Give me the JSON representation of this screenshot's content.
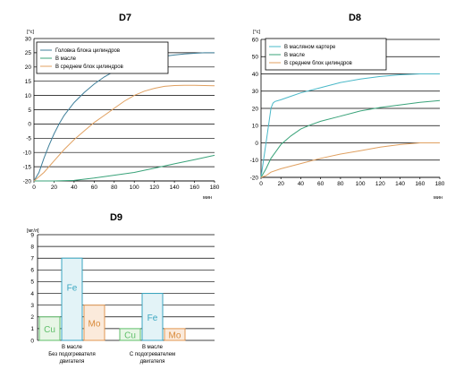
{
  "chart_data": [
    {
      "type": "line",
      "title": "D7",
      "unit": "[°с]",
      "xunit": "мин",
      "xlim": [
        0,
        180
      ],
      "ylim": [
        -20,
        30
      ],
      "xticks": [
        0,
        20,
        40,
        60,
        80,
        100,
        120,
        140,
        160,
        180
      ],
      "yticks": [
        -20,
        -15,
        -10,
        -5,
        0,
        5,
        10,
        15,
        20,
        25,
        30
      ],
      "grid": "horizontal",
      "legend_position": "top-left",
      "series": [
        {
          "name": "Головка блока цилиндров",
          "color": "#3f7f9a",
          "x": [
            0,
            5,
            10,
            15,
            20,
            25,
            30,
            40,
            50,
            60,
            70,
            80,
            90,
            100,
            110,
            120,
            130,
            140,
            150,
            160,
            170,
            180
          ],
          "y": [
            -20,
            -17,
            -12,
            -7.5,
            -3.5,
            0,
            3,
            7.5,
            11,
            14,
            16.5,
            18.5,
            20,
            21.5,
            22.5,
            23.2,
            23.8,
            24.2,
            24.6,
            24.8,
            25,
            25
          ]
        },
        {
          "name": "В масле",
          "color": "#3aa37a",
          "x": [
            0,
            20,
            40,
            60,
            80,
            100,
            120,
            140,
            160,
            180
          ],
          "y": [
            -20,
            -20,
            -19.8,
            -19,
            -18,
            -17,
            -15.5,
            -14,
            -12.5,
            -11
          ]
        },
        {
          "name": "В среднем блок цилиндров",
          "color": "#e0a060",
          "x": [
            0,
            10,
            20,
            30,
            40,
            50,
            60,
            70,
            80,
            90,
            100,
            110,
            120,
            130,
            140,
            150,
            160,
            170,
            180
          ],
          "y": [
            -20,
            -17,
            -13,
            -9,
            -5.5,
            -2.5,
            0.5,
            3,
            5.5,
            8,
            10,
            11.5,
            12.5,
            13.2,
            13.5,
            13.6,
            13.6,
            13.5,
            13.4
          ]
        }
      ]
    },
    {
      "type": "line",
      "title": "D8",
      "unit": "[°с]",
      "xunit": "мин",
      "xlim": [
        0,
        180
      ],
      "ylim": [
        -20,
        60
      ],
      "xticks": [
        0,
        20,
        40,
        60,
        80,
        100,
        120,
        140,
        160,
        180
      ],
      "yticks": [
        -20,
        -10,
        0,
        10,
        20,
        30,
        40,
        50,
        60
      ],
      "grid": "horizontal",
      "legend_position": "top-left",
      "series": [
        {
          "name": "В масляном картере",
          "color": "#4ab8c8",
          "x": [
            0,
            5,
            8,
            10,
            12,
            14,
            20,
            30,
            40,
            60,
            80,
            100,
            120,
            140,
            160,
            180
          ],
          "y": [
            -20,
            0,
            12,
            20,
            23,
            24,
            25,
            27,
            29,
            32,
            35,
            37,
            38.5,
            39.5,
            40,
            40
          ]
        },
        {
          "name": "В масле",
          "color": "#3aa37a",
          "x": [
            0,
            5,
            10,
            15,
            20,
            30,
            40,
            50,
            60,
            80,
            100,
            120,
            140,
            160,
            180
          ],
          "y": [
            -20,
            -15,
            -9,
            -5,
            -1,
            4,
            8,
            10.5,
            12.5,
            15.5,
            18.5,
            20.5,
            22,
            23.5,
            24.5
          ]
        },
        {
          "name": "В среднем блок цилиндров",
          "color": "#e0a060",
          "x": [
            0,
            5,
            10,
            20,
            30,
            40,
            60,
            80,
            100,
            120,
            140,
            160,
            180
          ],
          "y": [
            -20,
            -19,
            -17,
            -15,
            -13.5,
            -12,
            -9,
            -6.5,
            -4.5,
            -2.5,
            -1,
            0,
            0
          ]
        }
      ]
    },
    {
      "type": "bar",
      "title": "D9",
      "unit": "[мг/л]",
      "ylim": [
        0,
        9
      ],
      "yticks": [
        0,
        1,
        2,
        3,
        4,
        5,
        6,
        7,
        8,
        9
      ],
      "grid": "horizontal",
      "groups": [
        {
          "label_lines": [
            "В масле",
            "Без подогревателя",
            "двигателя"
          ],
          "bars": [
            {
              "name": "Cu",
              "value": 2,
              "fill": "#e8f6e6",
              "stroke": "#5fbf6a",
              "text_color": "#5fbf6a"
            },
            {
              "name": "Fe",
              "value": 7,
              "fill": "#e3f3f7",
              "stroke": "#39a6c0",
              "text_color": "#39a6c0"
            },
            {
              "name": "Mo",
              "value": 3,
              "fill": "#fbeadb",
              "stroke": "#e09550",
              "text_color": "#d98a3a"
            }
          ]
        },
        {
          "label_lines": [
            "В масле",
            "С подогревателем",
            "двигателя"
          ],
          "bars": [
            {
              "name": "Cu",
              "value": 1,
              "fill": "#e8f6e6",
              "stroke": "#5fbf6a",
              "text_color": "#5fbf6a"
            },
            {
              "name": "Fe",
              "value": 4,
              "fill": "#e3f3f7",
              "stroke": "#39a6c0",
              "text_color": "#39a6c0"
            },
            {
              "name": "Mo",
              "value": 1,
              "fill": "#fbeadb",
              "stroke": "#e09550",
              "text_color": "#d98a3a"
            }
          ]
        }
      ]
    }
  ]
}
